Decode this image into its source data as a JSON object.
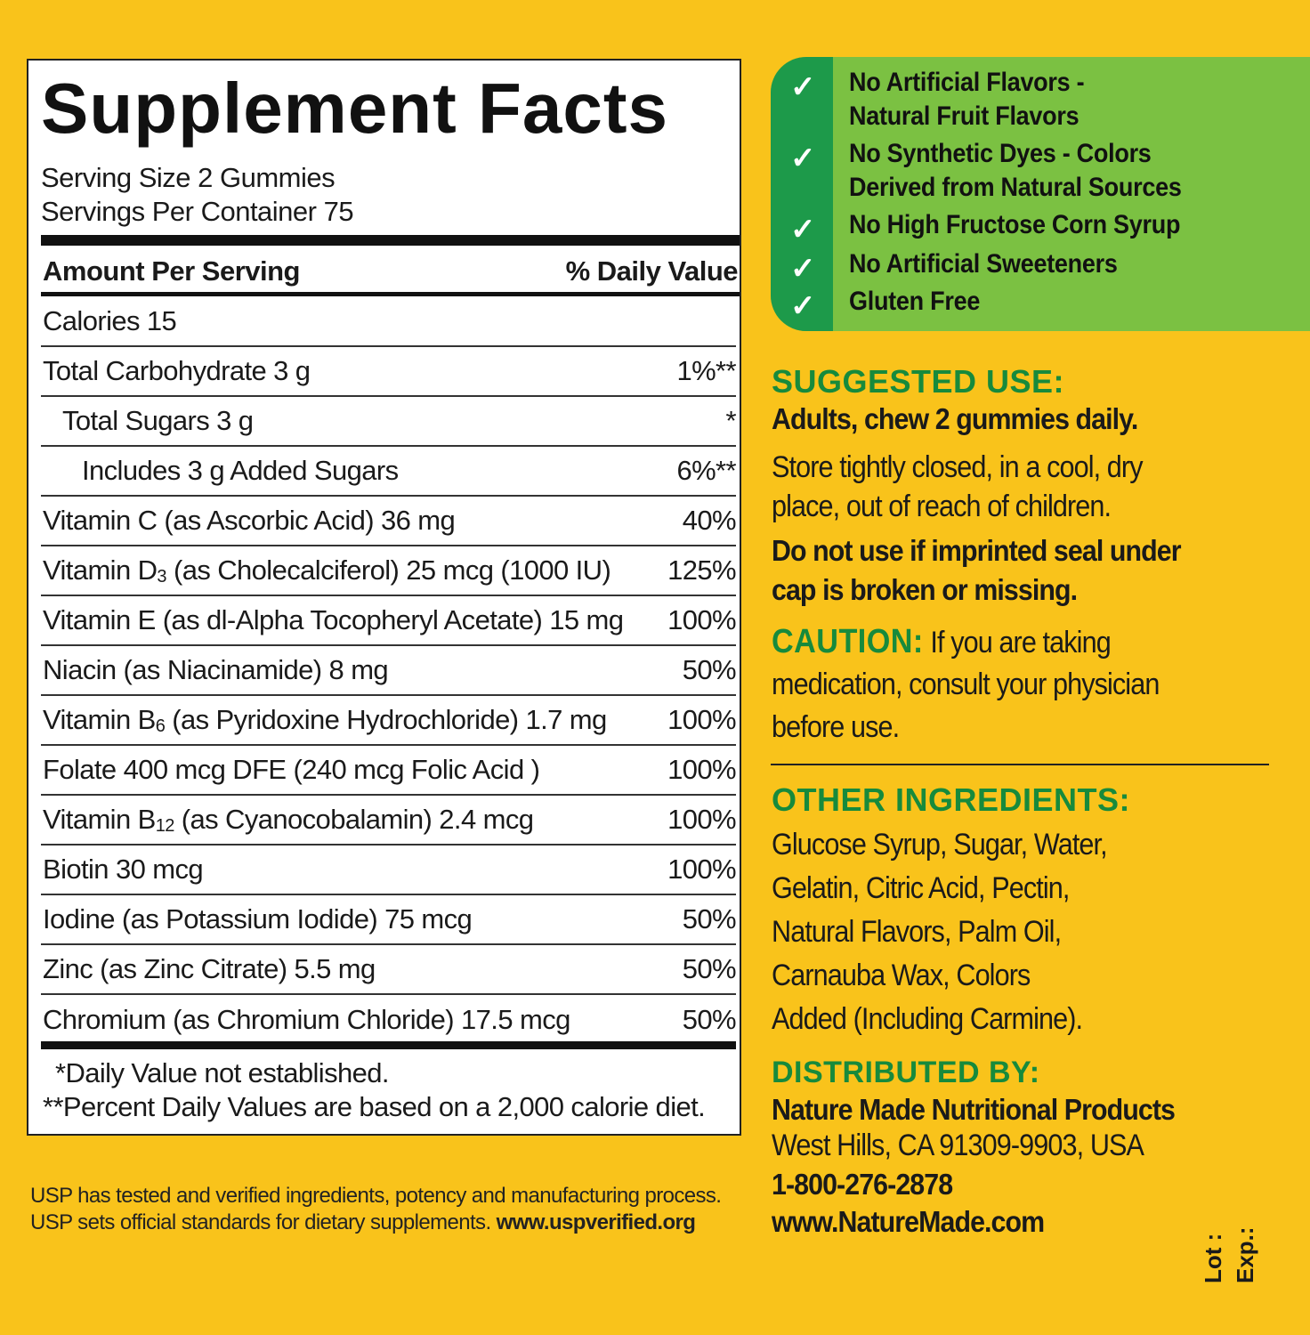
{
  "colors": {
    "background": "#f9c31b",
    "claims_light": "#7bc142",
    "claims_dark": "#1d9a4a",
    "heading_green": "#178a3c"
  },
  "facts": {
    "title": "Supplement Facts",
    "serving_size": "Serving Size 2 Gummies",
    "servings_per_container": "Servings Per Container 75",
    "amount_header": "Amount Per Serving",
    "dv_header": "% Daily Value",
    "rows": [
      {
        "pre": "Calories  15",
        "sub": "",
        "post": "",
        "dv": ""
      },
      {
        "pre": "Total Carbohydrate  3 g",
        "sub": "",
        "post": "",
        "dv": "1%**"
      },
      {
        "pre": "Total Sugars  3 g",
        "sub": "",
        "post": "",
        "dv": "*"
      },
      {
        "pre": "Includes  3 g Added Sugars",
        "sub": "",
        "post": "",
        "dv": "6%**"
      },
      {
        "pre": "Vitamin C (as Ascorbic Acid)  36 mg",
        "sub": "",
        "post": "",
        "dv": "40%"
      },
      {
        "pre": "Vitamin D",
        "sub": "3",
        "post": " (as Cholecalciferol)  25 mcg (1000 IU)",
        "dv": "125%"
      },
      {
        "pre": "Vitamin E (as dl-Alpha Tocopheryl Acetate)  15 mg",
        "sub": "",
        "post": "",
        "dv": "100%"
      },
      {
        "pre": "Niacin (as Niacinamide)  8 mg",
        "sub": "",
        "post": "",
        "dv": "50%"
      },
      {
        "pre": "Vitamin B",
        "sub": "6",
        "post": " (as Pyridoxine Hydrochloride)  1.7 mg",
        "dv": "100%"
      },
      {
        "pre": "Folate  400 mcg DFE (240 mcg Folic Acid )",
        "sub": "",
        "post": "",
        "dv": "100%"
      },
      {
        "pre": "Vitamin B",
        "sub": "12",
        "post": " (as Cyanocobalamin)  2.4 mcg",
        "dv": "100%"
      },
      {
        "pre": "Biotin  30 mcg",
        "sub": "",
        "post": "",
        "dv": "100%"
      },
      {
        "pre": "Iodine (as Potassium Iodide)  75 mcg",
        "sub": "",
        "post": "",
        "dv": "50%"
      },
      {
        "pre": "Zinc (as Zinc Citrate)  5.5 mg",
        "sub": "",
        "post": "",
        "dv": "50%"
      },
      {
        "pre": "Chromium (as Chromium Chloride) 17.5 mcg",
        "sub": "",
        "post": "",
        "dv": "50%"
      }
    ],
    "footnote1": "*Daily Value not established.",
    "footnote2": "**Percent Daily Values are based on a 2,000 calorie diet."
  },
  "usp": {
    "line1": "USP has tested and verified ingredients, potency and manufacturing process.",
    "line2_text": "USP sets official standards for dietary supplements. ",
    "line2_url": "www.uspverified.org"
  },
  "claims": {
    "icon": "checkmark-icon",
    "items": [
      {
        "line1": "No Artificial Flavors -",
        "line2": "Natural Fruit Flavors"
      },
      {
        "line1": "No Synthetic Dyes - Colors",
        "line2": "Derived from Natural Sources"
      },
      {
        "line1": "No High Fructose Corn Syrup",
        "line2": ""
      },
      {
        "line1": "No Artificial Sweeteners",
        "line2": ""
      },
      {
        "line1": "Gluten Free",
        "line2": ""
      }
    ]
  },
  "suggested_use": {
    "heading": "SUGGESTED USE:",
    "directions": "Adults, chew 2 gummies daily.",
    "storage1": "Store tightly closed, in a cool, dry",
    "storage2": "place, out of reach of children.",
    "warning1": "Do not use if imprinted seal under",
    "warning2": "cap is broken or missing.",
    "caution_label": "CAUTION:",
    "caution1": " If you are taking",
    "caution2": "medication, consult your physician",
    "caution3": "before use."
  },
  "other_ingredients": {
    "heading": "OTHER INGREDIENTS:",
    "lines": [
      "Glucose Syrup, Sugar, Water,",
      "Gelatin, Citric Acid, Pectin,",
      "Natural Flavors, Palm Oil,",
      "Carnauba Wax, Colors",
      "Added (Including Carmine)."
    ]
  },
  "distributor": {
    "heading": "DISTRIBUTED BY:",
    "name": "Nature Made Nutritional Products",
    "address": "West Hills, CA 91309-9903, USA",
    "phone": "1-800-276-2878",
    "website": "www.NatureMade.com"
  },
  "lot_label": "Lot :",
  "exp_label": "Exp.:"
}
